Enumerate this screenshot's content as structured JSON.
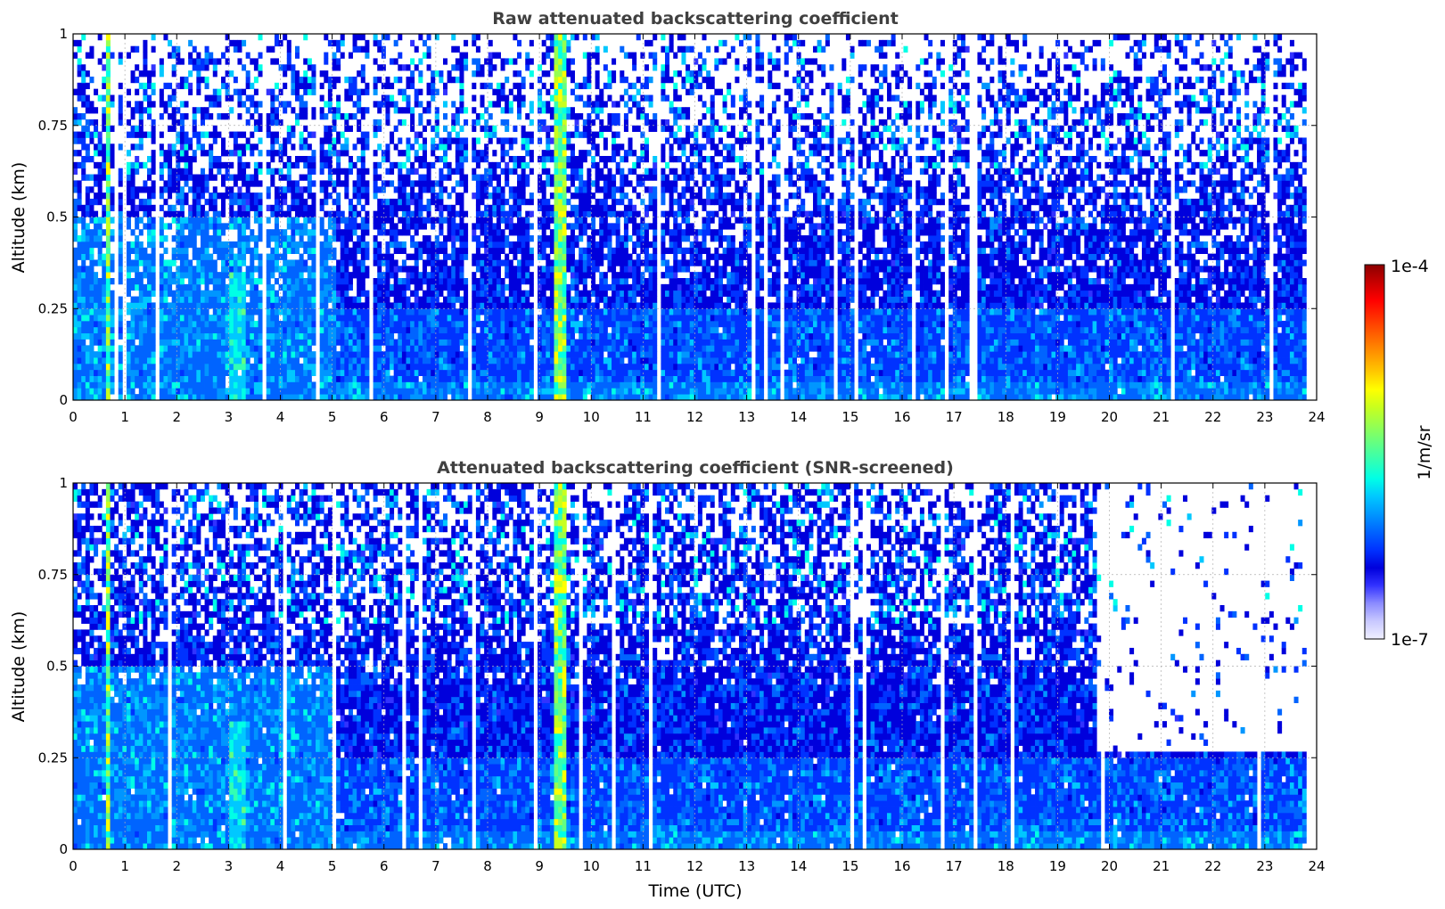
{
  "chart_data": [
    {
      "type": "heatmap",
      "title": "Raw attenuated backscattering coefficient",
      "xlabel": "",
      "ylabel": "Altitude (km)",
      "x_ticks": [
        "0",
        "1",
        "2",
        "3",
        "4",
        "5",
        "6",
        "7",
        "8",
        "9",
        "10",
        "11",
        "12",
        "13",
        "14",
        "15",
        "16",
        "17",
        "18",
        "19",
        "20",
        "21",
        "22",
        "23",
        "24"
      ],
      "y_ticks": [
        "0",
        "0.25",
        "0.5",
        "0.75",
        "1"
      ],
      "xlim": [
        0,
        24
      ],
      "ylim": [
        0,
        1
      ],
      "grid": true,
      "data_end_hour": 23.8,
      "bright_bands_hours": [
        [
          0.65,
          0.75
        ],
        [
          9.25,
          9.55
        ]
      ],
      "moderate_bands_hours": [
        [
          3.05,
          3.35
        ]
      ],
      "dense_layer_top_km": 0.25,
      "colorscale": "jet"
    },
    {
      "type": "heatmap",
      "title": "Attenuated backscattering coefficient (SNR-screened)",
      "xlabel": "Time (UTC)",
      "ylabel": "Altitude (km)",
      "x_ticks": [
        "0",
        "1",
        "2",
        "3",
        "4",
        "5",
        "6",
        "7",
        "8",
        "9",
        "10",
        "11",
        "12",
        "13",
        "14",
        "15",
        "16",
        "17",
        "18",
        "19",
        "20",
        "21",
        "22",
        "23",
        "24"
      ],
      "y_ticks": [
        "0",
        "0.25",
        "0.5",
        "0.75",
        "1"
      ],
      "xlim": [
        0,
        24
      ],
      "ylim": [
        0,
        1
      ],
      "grid": true,
      "data_end_hour": 23.8,
      "bright_bands_hours": [
        [
          0.65,
          0.75
        ],
        [
          9.25,
          9.55
        ]
      ],
      "moderate_bands_hours": [
        [
          3.05,
          3.35
        ]
      ],
      "screened_top_after_19_7h_km": 0.25,
      "colorscale": "jet"
    }
  ],
  "colorbar": {
    "label": "1/m/sr",
    "max_label": "1e-4",
    "min_label": "1e-7",
    "scale": "log",
    "colors": [
      "#f0f0ff",
      "#c8c8ff",
      "#8c8cff",
      "#3232ff",
      "#0000dc",
      "#0032ff",
      "#0064ff",
      "#0096ff",
      "#00c8ff",
      "#00ffe6",
      "#32ffb4",
      "#64ff82",
      "#96ff50",
      "#c8ff1e",
      "#ffff00",
      "#ffc800",
      "#ff9600",
      "#ff6400",
      "#ff3200",
      "#ff0000",
      "#c80000",
      "#8c0000"
    ]
  }
}
